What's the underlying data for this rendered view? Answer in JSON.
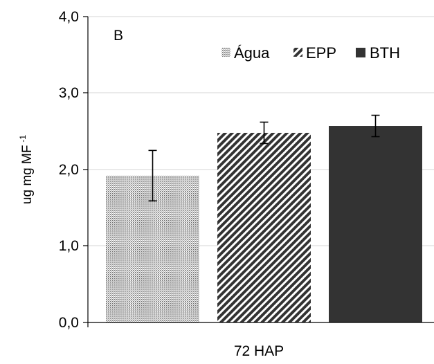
{
  "chart_data": {
    "type": "bar",
    "panel_label": "B",
    "categories": [
      "72 HAP"
    ],
    "xlabel": "72 HAP",
    "ylabel": "ug mg MF",
    "ylabel_superscript": "-1",
    "ylim": [
      0,
      4
    ],
    "y_ticks": [
      "0,0",
      "1,0",
      "2,0",
      "3,0",
      "4,0"
    ],
    "y_tick_values": [
      0,
      1,
      2,
      3,
      4
    ],
    "grid": true,
    "legend_position": "top-right",
    "series": [
      {
        "name": "Água",
        "values": [
          1.92
        ],
        "error": [
          0.33
        ],
        "pattern": "dots",
        "color": "#bdbdbd"
      },
      {
        "name": "EPP",
        "values": [
          2.48
        ],
        "error": [
          0.14
        ],
        "pattern": "diagonal-stripes",
        "color": "#3a3a3a"
      },
      {
        "name": "BTH",
        "values": [
          2.57
        ],
        "error": [
          0.14
        ],
        "pattern": "solid",
        "color": "#333333"
      }
    ]
  }
}
